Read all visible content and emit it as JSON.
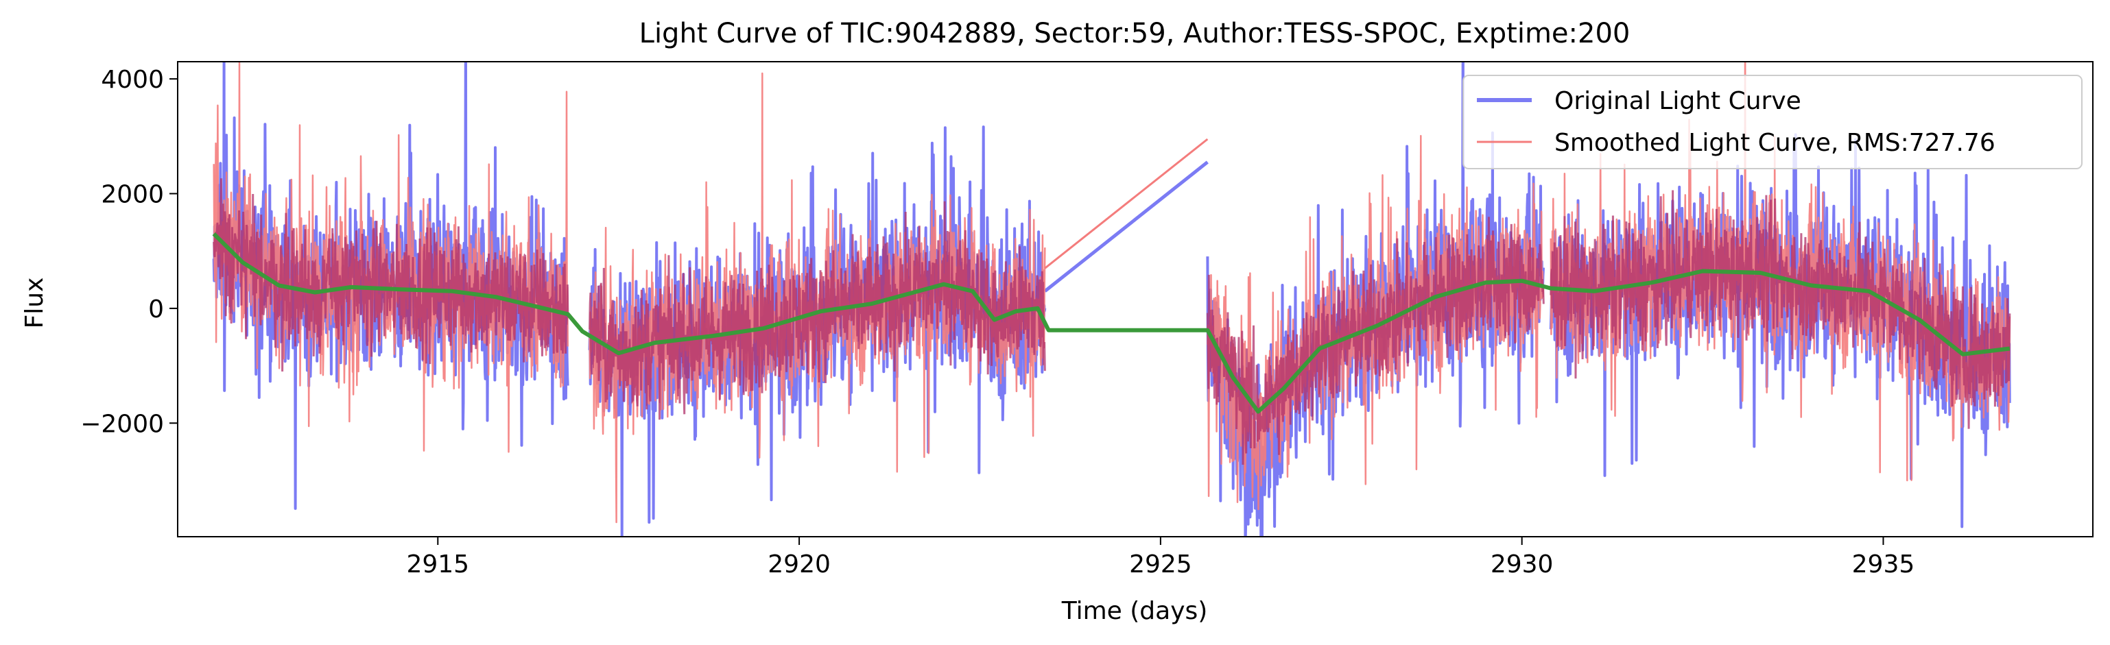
{
  "chart_data": {
    "type": "line",
    "title": "Light Curve of TIC:9042889, Sector:59, Author:TESS-SPOC, Exptime:200",
    "xlabel": "Time (days)",
    "ylabel": "Flux",
    "xlim": [
      2911.4,
      2937.9
    ],
    "ylim": [
      -3980,
      4300
    ],
    "xticks": [
      2915,
      2920,
      2925,
      2930,
      2935
    ],
    "yticks": [
      4000,
      2000,
      0,
      -2000
    ],
    "xtick_labels": [
      "2915",
      "2920",
      "2925",
      "2930",
      "2935"
    ],
    "ytick_labels": [
      "4000",
      "2000",
      "0",
      "−2000"
    ],
    "grid": false,
    "legend_position": "top-right",
    "segments": [
      {
        "start": 2911.9,
        "end": 2916.8
      },
      {
        "start": 2917.1,
        "end": 2923.4
      },
      {
        "start": 2925.65,
        "end": 2930.3
      },
      {
        "start": 2930.4,
        "end": 2936.75
      }
    ],
    "series": [
      {
        "name": "Original Light Curve",
        "color": "#7b7bf4",
        "note_values": "dense noisy flux, approx. range -3600 to 3200",
        "envelope": [
          {
            "x": 2911.9,
            "low": -1400,
            "high": 2900
          },
          {
            "x": 2914.0,
            "low": -1500,
            "high": 2300
          },
          {
            "x": 2916.8,
            "low": -2500,
            "high": 3200
          },
          {
            "x": 2917.1,
            "low": -2300,
            "high": 1500
          },
          {
            "x": 2920.0,
            "low": -2500,
            "high": 2000
          },
          {
            "x": 2923.4,
            "low": -2300,
            "high": 2900
          },
          {
            "x": 2925.65,
            "low": -1800,
            "high": 2550
          },
          {
            "x": 2926.3,
            "low": -3600,
            "high": 1800
          },
          {
            "x": 2928.0,
            "low": -2000,
            "high": 2200
          },
          {
            "x": 2930.3,
            "low": -1400,
            "high": 2200
          },
          {
            "x": 2933.0,
            "low": -2000,
            "high": 2800
          },
          {
            "x": 2936.75,
            "low": -3000,
            "high": 2200
          }
        ],
        "gap_line": [
          {
            "x": 2923.4,
            "y": 300
          },
          {
            "x": 2925.65,
            "y": 2550
          }
        ]
      },
      {
        "name": "Smoothed Light Curve, RMS:727.76",
        "color": "#f47c7c",
        "note_values": "dense noisy flux, approx. range -2600 to 3600",
        "gap_line": [
          {
            "x": 2923.4,
            "y": 700
          },
          {
            "x": 2925.65,
            "y": 2950
          }
        ]
      },
      {
        "color": "#3a9a3a",
        "trend": [
          {
            "x": 2911.9,
            "y": 1300
          },
          {
            "x": 2912.3,
            "y": 800
          },
          {
            "x": 2912.8,
            "y": 400
          },
          {
            "x": 2913.3,
            "y": 280
          },
          {
            "x": 2913.8,
            "y": 370
          },
          {
            "x": 2914.5,
            "y": 330
          },
          {
            "x": 2915.2,
            "y": 300
          },
          {
            "x": 2915.8,
            "y": 200
          },
          {
            "x": 2916.3,
            "y": 50
          },
          {
            "x": 2916.8,
            "y": -100
          },
          {
            "x": 2917.0,
            "y": -400
          },
          {
            "x": 2917.5,
            "y": -780
          },
          {
            "x": 2918.0,
            "y": -600
          },
          {
            "x": 2918.8,
            "y": -480
          },
          {
            "x": 2919.5,
            "y": -350
          },
          {
            "x": 2920.3,
            "y": -50
          },
          {
            "x": 2921.0,
            "y": 80
          },
          {
            "x": 2921.5,
            "y": 250
          },
          {
            "x": 2922.0,
            "y": 420
          },
          {
            "x": 2922.4,
            "y": 300
          },
          {
            "x": 2922.7,
            "y": -200
          },
          {
            "x": 2923.0,
            "y": -50
          },
          {
            "x": 2923.3,
            "y": 0
          },
          {
            "x": 2923.45,
            "y": -380
          },
          {
            "x": 2925.65,
            "y": -380
          },
          {
            "x": 2926.0,
            "y": -1200
          },
          {
            "x": 2926.35,
            "y": -1800
          },
          {
            "x": 2926.7,
            "y": -1400
          },
          {
            "x": 2927.2,
            "y": -700
          },
          {
            "x": 2928.0,
            "y": -300
          },
          {
            "x": 2928.8,
            "y": 200
          },
          {
            "x": 2929.5,
            "y": 450
          },
          {
            "x": 2930.0,
            "y": 480
          },
          {
            "x": 2930.4,
            "y": 350
          },
          {
            "x": 2931.0,
            "y": 300
          },
          {
            "x": 2931.8,
            "y": 450
          },
          {
            "x": 2932.5,
            "y": 650
          },
          {
            "x": 2933.3,
            "y": 620
          },
          {
            "x": 2934.0,
            "y": 400
          },
          {
            "x": 2934.8,
            "y": 300
          },
          {
            "x": 2935.5,
            "y": -200
          },
          {
            "x": 2936.1,
            "y": -800
          },
          {
            "x": 2936.75,
            "y": -700
          }
        ]
      }
    ]
  }
}
